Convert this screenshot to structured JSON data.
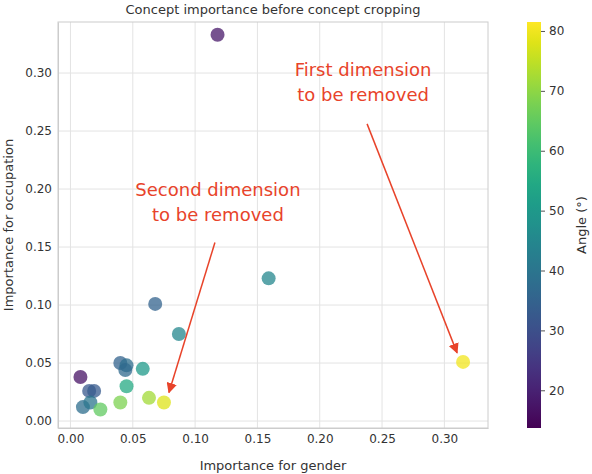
{
  "chart_data": {
    "type": "scatter",
    "title": "Concept importance before concept cropping",
    "x_label": "Importance for gender",
    "y_label": "Importance for occupation",
    "x": [
      0.118,
      0.315,
      0.159,
      0.068,
      0.087,
      0.04,
      0.045,
      0.044,
      0.058,
      0.045,
      0.008,
      0.015,
      0.019,
      0.01,
      0.016,
      0.024,
      0.04,
      0.063,
      0.075
    ],
    "values": [
      0.333,
      0.051,
      0.123,
      0.101,
      0.075,
      0.05,
      0.048,
      0.044,
      0.045,
      0.03,
      0.038,
      0.026,
      0.026,
      0.012,
      0.016,
      0.01,
      0.016,
      0.02,
      0.016
    ],
    "angle": [
      18,
      80,
      45,
      35,
      45,
      35,
      38,
      37,
      50,
      55,
      17,
      32,
      33,
      38,
      40,
      65,
      68,
      72,
      78
    ],
    "colorbar": {
      "label": "Angle (°)",
      "range": [
        13.7,
        81.5
      ],
      "ticks": [
        20,
        30,
        40,
        50,
        60,
        70,
        80
      ]
    },
    "xlim": [
      -0.01,
      0.335
    ],
    "ylim": [
      -0.006,
      0.344
    ],
    "xticks": [
      {
        "value": 0,
        "label": "0.00"
      },
      {
        "value": 0.05,
        "label": "0.05"
      },
      {
        "value": 0.1,
        "label": "0.10"
      },
      {
        "value": 0.15,
        "label": "0.15"
      },
      {
        "value": 0.2,
        "label": "0.20"
      },
      {
        "value": 0.25,
        "label": "0.25"
      },
      {
        "value": 0.3,
        "label": "0.30"
      }
    ],
    "yticks": [
      {
        "value": 0,
        "label": "0.00"
      },
      {
        "value": 0.05,
        "label": "0.05"
      },
      {
        "value": 0.1,
        "label": "0.10"
      },
      {
        "value": 0.15,
        "label": "0.15"
      },
      {
        "value": 0.2,
        "label": "0.20"
      },
      {
        "value": 0.25,
        "label": "0.25"
      },
      {
        "value": 0.3,
        "label": "0.30"
      }
    ],
    "grid": true,
    "marker": "circle",
    "annotations": [
      {
        "text": [
          "First dimension",
          "to be removed"
        ],
        "x": 0.315,
        "y": 0.051
      },
      {
        "text": [
          "Second dimension",
          "to be removed"
        ],
        "x": 0.075,
        "y": 0.016
      }
    ]
  }
}
